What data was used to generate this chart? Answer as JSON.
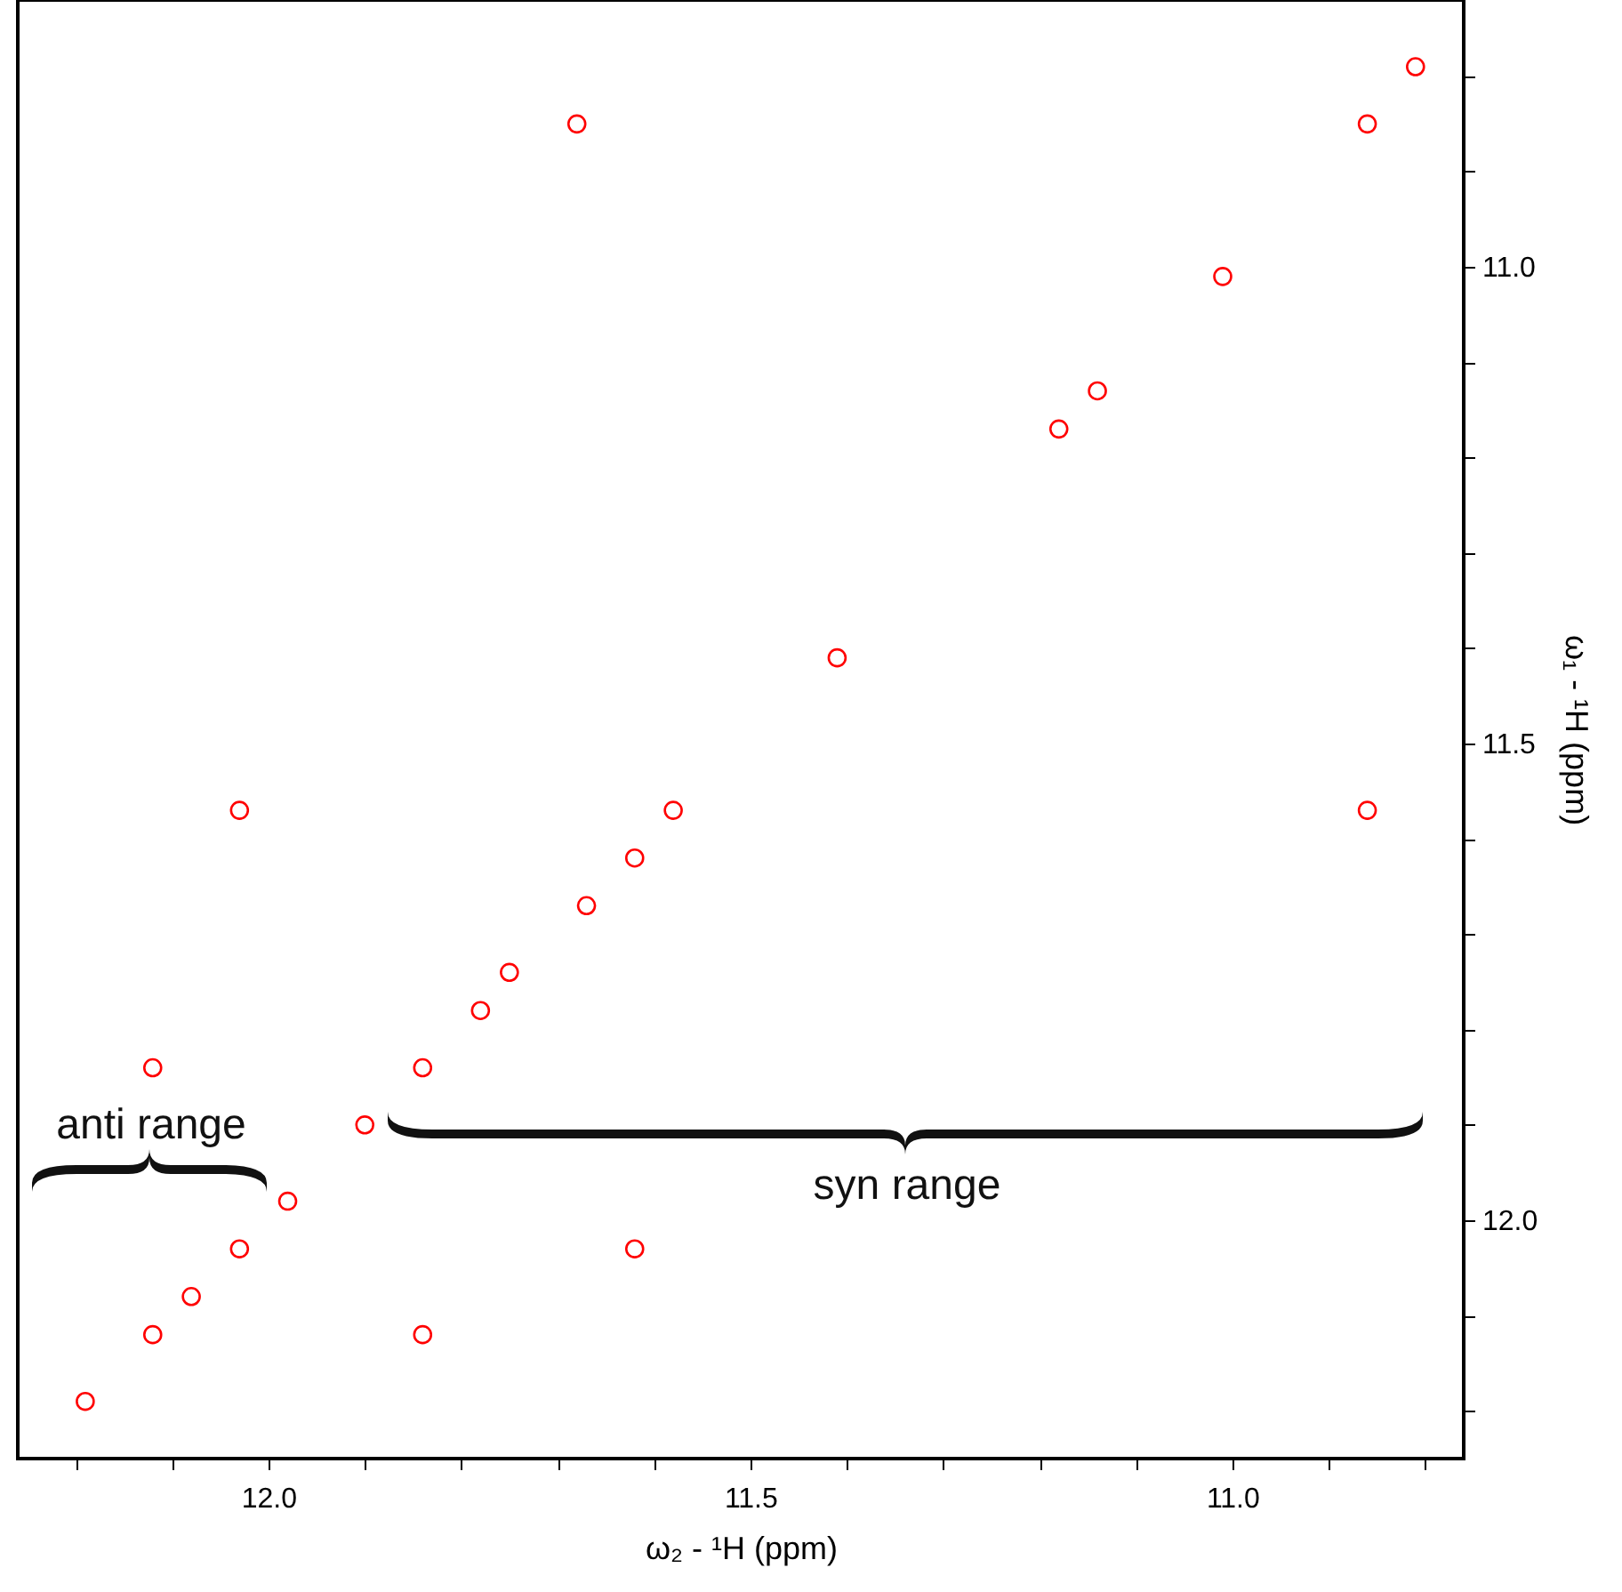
{
  "chart_data": {
    "type": "scatter",
    "xlabel": "ω₂ - ¹H  (ppm)",
    "ylabel": "ω₁ - ¹H  (ppm)",
    "x": [
      11.68,
      10.86,
      10.81,
      11.01,
      11.14,
      11.18,
      11.41,
      11.58,
      11.62,
      11.67,
      11.75,
      11.78,
      11.84,
      10.86,
      12.12,
      12.03,
      11.9,
      11.98,
      12.03,
      12.08,
      12.12,
      12.19,
      11.62,
      11.84
    ],
    "series": [
      {
        "color": "#ff0000",
        "values": [
          10.85,
          10.85,
          10.79,
          11.01,
          11.13,
          11.17,
          11.41,
          11.57,
          11.62,
          11.67,
          11.74,
          11.78,
          11.84,
          11.57,
          11.84,
          11.57,
          11.9,
          11.98,
          12.03,
          12.08,
          12.12,
          12.19,
          12.03,
          12.12
        ]
      }
    ],
    "xlim": [
      12.26,
      10.76
    ],
    "ylim": [
      12.25,
      10.72
    ],
    "xticks": [
      {
        "value": 12.2,
        "label": null
      },
      {
        "value": 12.1,
        "label": null
      },
      {
        "value": 12,
        "label": "12.0"
      },
      {
        "value": 11.9,
        "label": null
      },
      {
        "value": 11.8,
        "label": null
      },
      {
        "value": 11.7,
        "label": null
      },
      {
        "value": 11.6,
        "label": null
      },
      {
        "value": 11.5,
        "label": "11.5"
      },
      {
        "value": 11.4,
        "label": null
      },
      {
        "value": 11.3,
        "label": null
      },
      {
        "value": 11.2,
        "label": null
      },
      {
        "value": 11.1,
        "label": null
      },
      {
        "value": 11,
        "label": "11.0"
      },
      {
        "value": 10.9,
        "label": null
      },
      {
        "value": 10.8,
        "label": null
      }
    ],
    "yticks": [
      {
        "value": 10.8,
        "label": null
      },
      {
        "value": 10.9,
        "label": null
      },
      {
        "value": 11,
        "label": "11.0"
      },
      {
        "value": 11.1,
        "label": null
      },
      {
        "value": 11.2,
        "label": null
      },
      {
        "value": 11.3,
        "label": null
      },
      {
        "value": 11.4,
        "label": null
      },
      {
        "value": 11.5,
        "label": "11.5"
      },
      {
        "value": 11.6,
        "label": null
      },
      {
        "value": 11.7,
        "label": null
      },
      {
        "value": 11.8,
        "label": null
      },
      {
        "value": 11.9,
        "label": null
      },
      {
        "value": 12,
        "label": "12.0"
      },
      {
        "value": 12.1,
        "label": null
      },
      {
        "value": 12.2,
        "label": null
      }
    ],
    "annotations": [
      "anti range",
      "syn range"
    ],
    "grid": false,
    "marker": "circle"
  }
}
